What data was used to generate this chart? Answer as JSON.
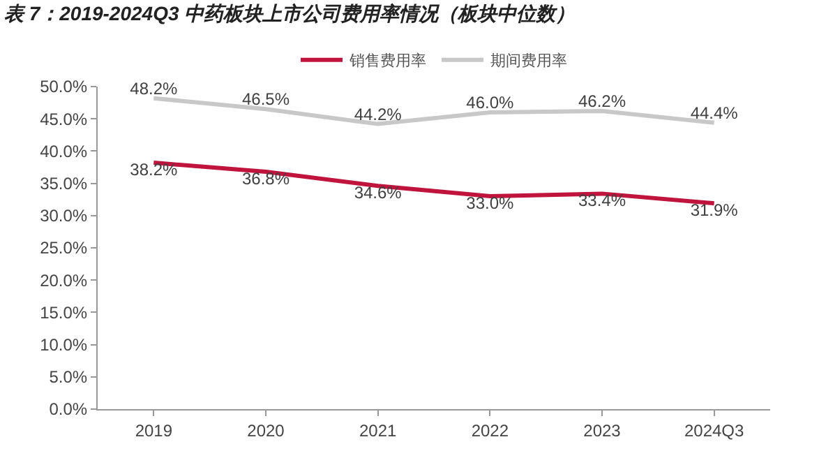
{
  "chart_data": {
    "type": "line",
    "title": "表 7：2019-2024Q3 中药板块上市公司费用率情况（板块中位数）",
    "categories": [
      "2019",
      "2020",
      "2021",
      "2022",
      "2023",
      "2024Q3"
    ],
    "series": [
      {
        "name": "销售费用率",
        "color": "#c0143c",
        "values": [
          38.2,
          36.8,
          34.6,
          33.0,
          33.4,
          31.9
        ],
        "value_labels": [
          "38.2%",
          "36.8%",
          "34.6%",
          "33.0%",
          "33.4%",
          "31.9%"
        ]
      },
      {
        "name": "期间费用率",
        "color": "#c8c8c8",
        "values": [
          48.2,
          46.5,
          44.2,
          46.0,
          46.2,
          44.4
        ],
        "value_labels": [
          "48.2%",
          "46.5%",
          "44.2%",
          "46.0%",
          "46.2%",
          "44.4%"
        ]
      }
    ],
    "ylim": [
      0,
      50
    ],
    "yticks": [
      {
        "value": 0,
        "label": "0.0%"
      },
      {
        "value": 5,
        "label": "5.0%"
      },
      {
        "value": 10,
        "label": "10.0%"
      },
      {
        "value": 15,
        "label": "15.0%"
      },
      {
        "value": 20,
        "label": "20.0%"
      },
      {
        "value": 25,
        "label": "25.0%"
      },
      {
        "value": 30,
        "label": "30.0%"
      },
      {
        "value": 35,
        "label": "35.0%"
      },
      {
        "value": 40,
        "label": "40.0%"
      },
      {
        "value": 45,
        "label": "45.0%"
      },
      {
        "value": 50,
        "label": "50.0%"
      }
    ],
    "grid": false,
    "legend": "top",
    "marker": "none",
    "line_style": "solid"
  }
}
